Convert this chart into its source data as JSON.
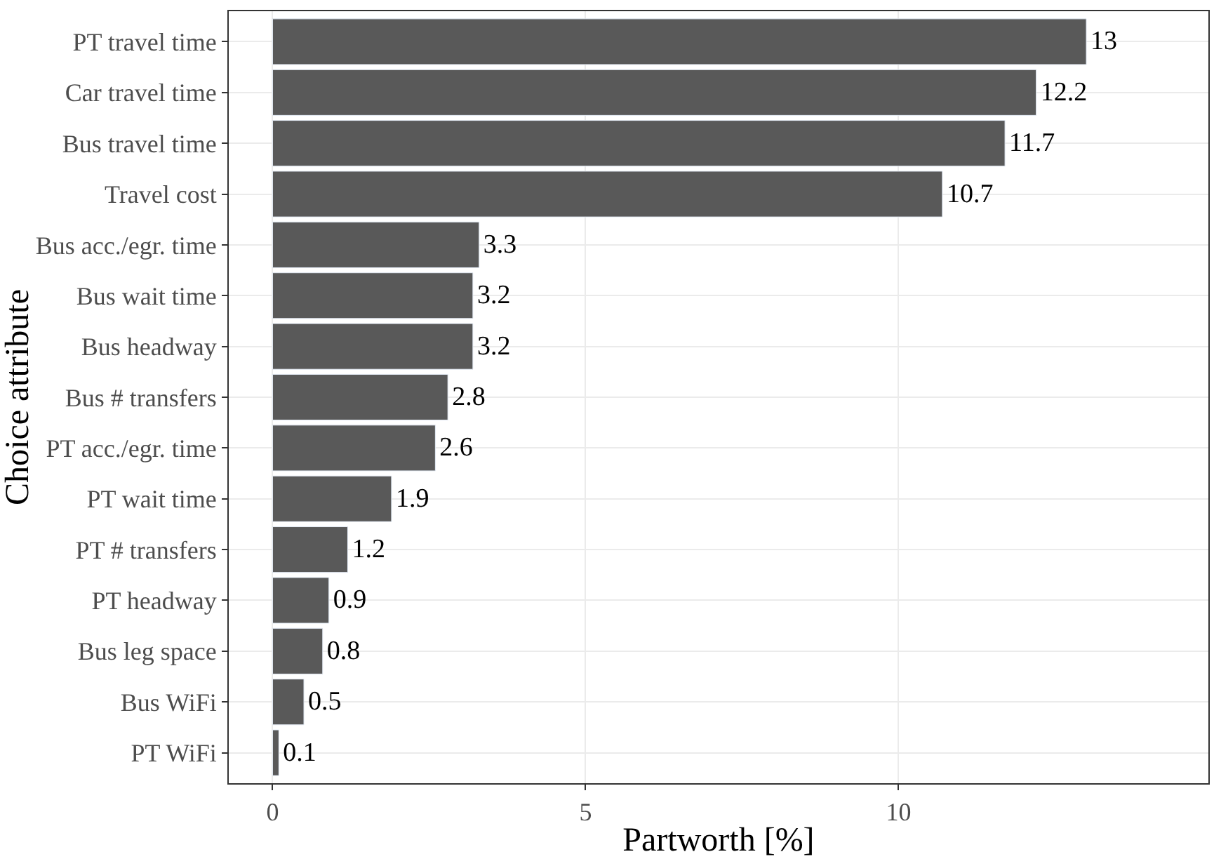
{
  "chart_data": {
    "type": "bar",
    "orientation": "horizontal",
    "xlabel": "Partworth [%]",
    "ylabel": "Choice attribute",
    "categories": [
      "PT travel time",
      "Car travel time",
      "Bus travel time",
      "Travel cost",
      "Bus acc./egr. time",
      "Bus wait time",
      "Bus headway",
      "Bus # transfers",
      "PT acc./egr. time",
      "PT wait time",
      "PT # transfers",
      "PT headway",
      "Bus leg space",
      "Bus WiFi",
      "PT WiFi"
    ],
    "values": [
      13,
      12.2,
      11.7,
      10.7,
      3.3,
      3.2,
      3.2,
      2.8,
      2.6,
      1.9,
      1.2,
      0.9,
      0.8,
      0.5,
      0.1
    ],
    "color": "#595959",
    "xlim": [
      -0.7,
      14.95
    ],
    "xticks": [
      0,
      5,
      10
    ],
    "grid": true,
    "data_labels": true
  }
}
